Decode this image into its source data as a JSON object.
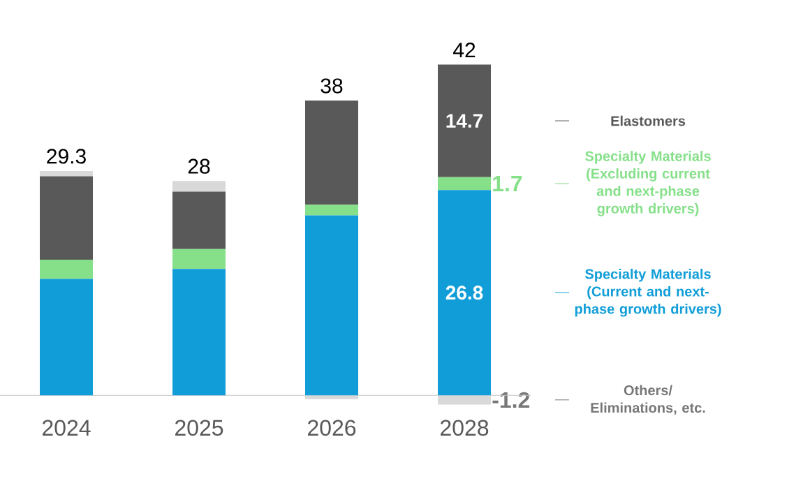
{
  "chart_data": {
    "type": "bar",
    "stacked": true,
    "categories": [
      "2024",
      "2025",
      "2026",
      "2028"
    ],
    "series": [
      {
        "name": "Specialty Materials (Current and next-phase growth drivers)",
        "color": "#119ed8",
        "values": [
          15.2,
          16.5,
          23.5,
          26.8
        ],
        "value_labels": [
          null,
          null,
          null,
          "26.8"
        ]
      },
      {
        "name": "Specialty Materials (Excluding current and next-phase growth drivers)",
        "color": "#86e08a",
        "values": [
          2.5,
          2.6,
          1.4,
          1.7
        ],
        "value_labels": [
          null,
          null,
          null,
          "1.7"
        ]
      },
      {
        "name": "Elastomers",
        "color": "#595959",
        "values": [
          10.9,
          7.5,
          13.6,
          14.7
        ],
        "value_labels": [
          null,
          null,
          null,
          "14.7"
        ]
      },
      {
        "name": "Others/ Eliminations, etc.",
        "color": "#d9d9d9",
        "values": [
          0.7,
          1.4,
          -0.5,
          -1.2
        ],
        "value_labels": [
          null,
          null,
          null,
          "-1.2"
        ]
      }
    ],
    "totals": [
      "29.3",
      "28",
      "38",
      "42"
    ]
  }
}
